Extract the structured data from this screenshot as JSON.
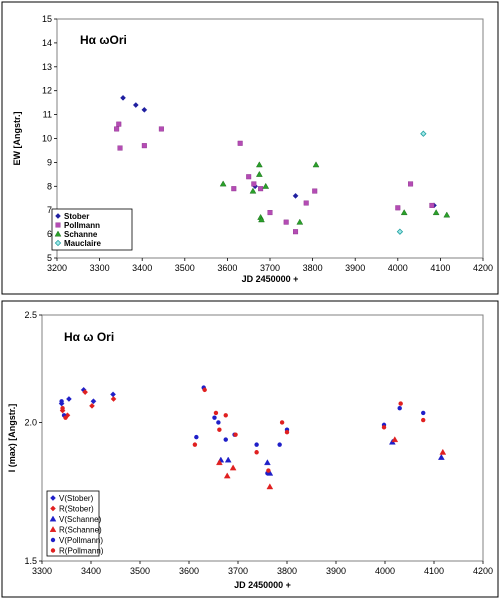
{
  "chart_data": [
    {
      "type": "scatter",
      "title": "Hα ωOri",
      "xlabel": "JD 2450000 +",
      "ylabel": "EW [Angstr.]",
      "xlim": [
        3200,
        4200
      ],
      "ylim": [
        5,
        15
      ],
      "xticks": [
        "3200",
        "3300",
        "3400",
        "3500",
        "3600",
        "3700",
        "3800",
        "3900",
        "4000",
        "4100",
        "4200"
      ],
      "yticks": [
        "5",
        "6",
        "7",
        "8",
        "9",
        "10",
        "11",
        "12",
        "13",
        "14",
        "15"
      ],
      "grid": false,
      "legend": "bottom-left",
      "series": [
        {
          "name": "Stober",
          "marker": "diamond",
          "color": "#1f1fa0",
          "points": [
            [
              3355,
              11.7
            ],
            [
              3385,
              11.4
            ],
            [
              3405,
              11.2
            ],
            [
              3665,
              8.0
            ],
            [
              3760,
              7.6
            ],
            [
              4085,
              7.2
            ]
          ]
        },
        {
          "name": "Pollmann",
          "marker": "square",
          "color": "#b44cb4",
          "points": [
            [
              3340,
              10.4
            ],
            [
              3345,
              10.6
            ],
            [
              3348,
              9.6
            ],
            [
              3405,
              9.7
            ],
            [
              3445,
              10.4
            ],
            [
              3630,
              9.8
            ],
            [
              3615,
              7.9
            ],
            [
              3650,
              8.4
            ],
            [
              3662,
              8.1
            ],
            [
              3678,
              7.9
            ],
            [
              3700,
              6.9
            ],
            [
              3738,
              6.5
            ],
            [
              3760,
              6.1
            ],
            [
              3785,
              7.3
            ],
            [
              3805,
              7.8
            ],
            [
              4000,
              7.1
            ],
            [
              4030,
              8.1
            ],
            [
              4080,
              7.2
            ]
          ]
        },
        {
          "name": "Schanne",
          "marker": "triangle",
          "color": "#2aa02a",
          "points": [
            [
              3590,
              8.1
            ],
            [
              3660,
              7.8
            ],
            [
              3675,
              8.9
            ],
            [
              3675,
              8.5
            ],
            [
              3678,
              6.7
            ],
            [
              3680,
              6.6
            ],
            [
              3690,
              8.0
            ],
            [
              3770,
              6.5
            ],
            [
              3808,
              8.9
            ],
            [
              4015,
              6.9
            ],
            [
              4090,
              6.9
            ],
            [
              4115,
              6.8
            ]
          ]
        },
        {
          "name": "Mauclaire",
          "marker": "diamond-open",
          "color": "#20a0a0",
          "points": [
            [
              4005,
              6.1
            ],
            [
              4060,
              10.2
            ]
          ]
        }
      ]
    },
    {
      "type": "scatter",
      "title": "Hα ω Ori",
      "xlabel": "JD 2450000 +",
      "ylabel": "I (max) [Angstr.]",
      "xlim": [
        3300,
        4200
      ],
      "ylim": [
        1.5,
        2.5
      ],
      "yscale": "log",
      "xticks": [
        "3300",
        "3400",
        "3500",
        "3600",
        "3700",
        "3800",
        "3900",
        "4000",
        "4100",
        "4200"
      ],
      "yticks": [
        "1.5",
        "2.0",
        "2.5"
      ],
      "grid": false,
      "legend": "bottom-left",
      "series": [
        {
          "name": "V(Stober)",
          "marker": "diamond",
          "color": "#1f1fc8",
          "points": [
            [
              3340,
              2.08
            ],
            [
              3355,
              2.1
            ],
            [
              3385,
              2.14
            ],
            [
              3405,
              2.09
            ],
            [
              3445,
              2.12
            ]
          ]
        },
        {
          "name": "R(Stober)",
          "marker": "diamond",
          "color": "#e02020",
          "points": [
            [
              3342,
              2.05
            ],
            [
              3352,
              2.03
            ],
            [
              3388,
              2.13
            ],
            [
              3402,
              2.07
            ],
            [
              3446,
              2.1
            ]
          ]
        },
        {
          "name": "V(Schanne)",
          "marker": "triangle",
          "color": "#1f1fc8",
          "points": [
            [
              3665,
              1.85
            ],
            [
              3680,
              1.85
            ],
            [
              3760,
              1.84
            ],
            [
              3765,
              1.8
            ],
            [
              4015,
              1.92
            ],
            [
              4115,
              1.86
            ]
          ]
        },
        {
          "name": "R(Schanne)",
          "marker": "triangle",
          "color": "#e02020",
          "points": [
            [
              3662,
              1.84
            ],
            [
              3678,
              1.79
            ],
            [
              3690,
              1.82
            ],
            [
              3765,
              1.75
            ],
            [
              4020,
              1.93
            ],
            [
              4118,
              1.88
            ]
          ]
        },
        {
          "name": "V(Pollmann)",
          "marker": "circle",
          "color": "#1f1fc8",
          "points": [
            [
              3340,
              2.09
            ],
            [
              3345,
              2.03
            ],
            [
              3615,
              1.94
            ],
            [
              3630,
              2.15
            ],
            [
              3652,
              2.02
            ],
            [
              3660,
              2.0
            ],
            [
              3675,
              1.93
            ],
            [
              3693,
              1.95
            ],
            [
              3738,
              1.91
            ],
            [
              3760,
              1.8
            ],
            [
              3785,
              1.91
            ],
            [
              3800,
              1.97
            ],
            [
              3998,
              1.99
            ],
            [
              4030,
              2.06
            ],
            [
              4078,
              2.04
            ]
          ]
        },
        {
          "name": "R(Pollmann)",
          "marker": "circle",
          "color": "#e02020",
          "points": [
            [
              3342,
              2.06
            ],
            [
              3348,
              2.02
            ],
            [
              3612,
              1.91
            ],
            [
              3632,
              2.14
            ],
            [
              3655,
              2.04
            ],
            [
              3662,
              1.97
            ],
            [
              3675,
              2.03
            ],
            [
              3695,
              1.95
            ],
            [
              3738,
              1.88
            ],
            [
              3762,
              1.81
            ],
            [
              3790,
              2.0
            ],
            [
              3800,
              1.96
            ],
            [
              3998,
              1.98
            ],
            [
              4032,
              2.08
            ],
            [
              4078,
              2.01
            ]
          ]
        }
      ]
    }
  ]
}
